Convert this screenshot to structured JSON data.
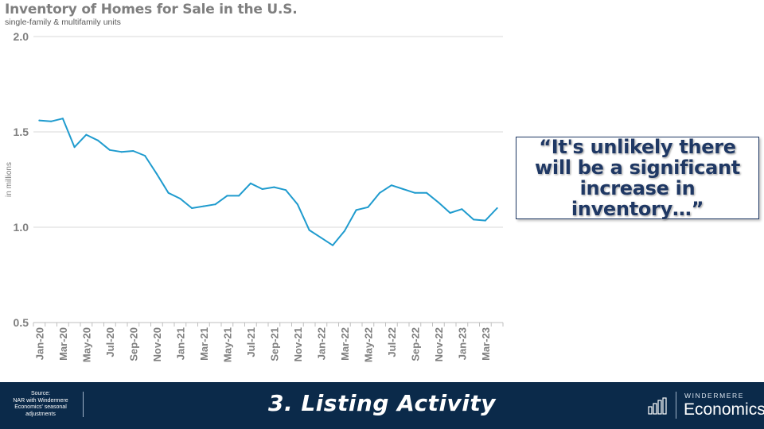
{
  "title": "Inventory of Homes for Sale in the U.S.",
  "subtitle": "single-family & multifamily units",
  "quote": "“It's unlikely there will be a significant increase in inventory…”",
  "footer": {
    "source": "Source:\nNAR with Windermere Economics' seasonal adjustments",
    "section_title": "3. Listing Activity",
    "brand_top": "WINDERMERE",
    "brand_bottom": "Economics"
  },
  "colors": {
    "line": "#1f9bce",
    "footer_bg": "#0b2a4a",
    "quote_text": "#1f3864",
    "grid": "#d9d9d9"
  },
  "chart_data": {
    "type": "line",
    "title": "Inventory of Homes for Sale in the U.S.",
    "subtitle": "single-family & multifamily units",
    "ylabel": "in millions",
    "ylim": [
      0.5,
      2.0
    ],
    "yticks": [
      "0.5",
      "1.0",
      "1.5",
      "2.0"
    ],
    "grid": true,
    "x": [
      "Jan-20",
      "Feb-20",
      "Mar-20",
      "Apr-20",
      "May-20",
      "Jun-20",
      "Jul-20",
      "Aug-20",
      "Sep-20",
      "Oct-20",
      "Nov-20",
      "Dec-20",
      "Jan-21",
      "Feb-21",
      "Mar-21",
      "Apr-21",
      "May-21",
      "Jun-21",
      "Jul-21",
      "Aug-21",
      "Sep-21",
      "Oct-21",
      "Nov-21",
      "Dec-21",
      "Jan-22",
      "Feb-22",
      "Mar-22",
      "Apr-22",
      "May-22",
      "Jun-22",
      "Jul-22",
      "Aug-22",
      "Sep-22",
      "Oct-22",
      "Nov-22",
      "Dec-22",
      "Jan-23",
      "Feb-23",
      "Mar-23",
      "Apr-23"
    ],
    "xtick_labels": [
      "Jan-20",
      "Mar-20",
      "May-20",
      "Jul-20",
      "Sep-20",
      "Nov-20",
      "Jan-21",
      "Mar-21",
      "May-21",
      "Jul-21",
      "Sep-21",
      "Nov-21",
      "Jan-22",
      "Mar-22",
      "May-22",
      "Jul-22",
      "Sep-22",
      "Nov-22",
      "Jan-23",
      "Mar-23"
    ],
    "values": [
      1.56,
      1.555,
      1.57,
      1.42,
      1.485,
      1.455,
      1.405,
      1.395,
      1.4,
      1.375,
      1.28,
      1.18,
      1.15,
      1.1,
      1.11,
      1.12,
      1.165,
      1.165,
      1.23,
      1.2,
      1.21,
      1.195,
      1.12,
      0.985,
      0.945,
      0.905,
      0.98,
      1.09,
      1.105,
      1.18,
      1.22,
      1.2,
      1.18,
      1.18,
      1.13,
      1.075,
      1.095,
      1.04,
      1.035,
      1.1
    ]
  }
}
